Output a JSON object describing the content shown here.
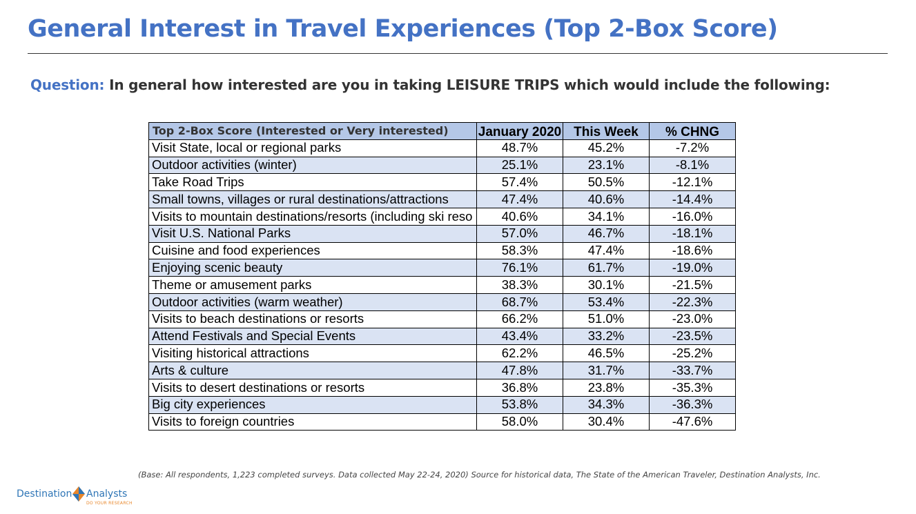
{
  "header": {
    "title": "General Interest in Travel Experiences (Top 2-Box Score)",
    "question_label": "Question:",
    "question_text": " In general how interested are you in taking LEISURE TRIPS which would include the following:"
  },
  "footnote": "(Base: All respondents, 1,223 completed surveys. Data collected May 22-24, 2020) Source for historical data, The State of the American Traveler, Destination Analysts, Inc.",
  "logo": {
    "word1": "Destination",
    "word2": "Analysts",
    "tagline": "DO YOUR RESEARCH",
    "icon": "diamond-logo-icon",
    "colors": {
      "blue": "#2E75B6",
      "orange": "#E8862A"
    }
  },
  "colors": {
    "title": "#4472C4",
    "header_bg": "#B4C7E7",
    "band_bg": "#DAE3F3"
  },
  "chart_data": {
    "type": "table",
    "title": "General Interest in Travel Experiences (Top 2-Box Score)",
    "columns": [
      "Top 2-Box Score (Interested or Very interested)",
      "January 2020",
      "This Week",
      "% CHNG"
    ],
    "rows": [
      [
        "Visit State, local or regional parks",
        "48.7%",
        "45.2%",
        "-7.2%"
      ],
      [
        "Outdoor activities (winter)",
        "25.1%",
        "23.1%",
        "-8.1%"
      ],
      [
        "Take Road Trips",
        "57.4%",
        "50.5%",
        "-12.1%"
      ],
      [
        "Small towns, villages or rural destinations/attractions",
        "47.4%",
        "40.6%",
        "-14.4%"
      ],
      [
        "Visits to mountain destinations/resorts (including ski reso",
        "40.6%",
        "34.1%",
        "-16.0%"
      ],
      [
        "Visit U.S. National Parks",
        "57.0%",
        "46.7%",
        "-18.1%"
      ],
      [
        "Cuisine and food experiences",
        "58.3%",
        "47.4%",
        "-18.6%"
      ],
      [
        "Enjoying scenic beauty",
        "76.1%",
        "61.7%",
        "-19.0%"
      ],
      [
        "Theme or amusement parks",
        "38.3%",
        "30.1%",
        "-21.5%"
      ],
      [
        "Outdoor activities (warm weather)",
        "68.7%",
        "53.4%",
        "-22.3%"
      ],
      [
        "Visits to beach destinations or resorts",
        "66.2%",
        "51.0%",
        "-23.0%"
      ],
      [
        "Attend Festivals and Special Events",
        "43.4%",
        "33.2%",
        "-23.5%"
      ],
      [
        "Visiting historical attractions",
        "62.2%",
        "46.5%",
        "-25.2%"
      ],
      [
        "Arts & culture",
        "47.8%",
        "31.7%",
        "-33.7%"
      ],
      [
        "Visits to desert destinations or resorts",
        "36.8%",
        "23.8%",
        "-35.3%"
      ],
      [
        "Big city experiences",
        "53.8%",
        "34.3%",
        "-36.3%"
      ],
      [
        "Visits to foreign countries",
        "58.0%",
        "30.4%",
        "-47.6%"
      ]
    ]
  }
}
